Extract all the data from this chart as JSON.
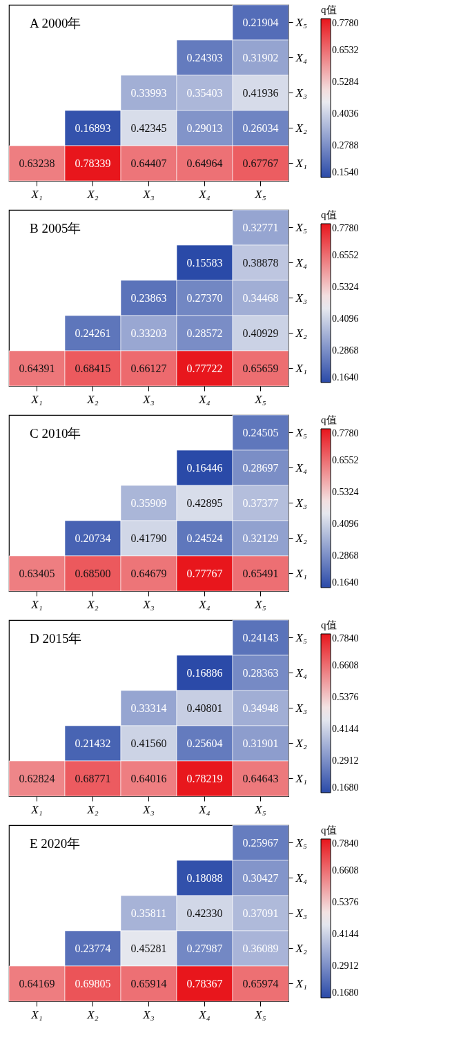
{
  "chart_data": [
    {
      "type": "heatmap",
      "title": "A 2000年",
      "categories": [
        "X₁",
        "X₂",
        "X₃",
        "X₄",
        "X₅"
      ],
      "y_categories": [
        "X₅",
        "X₄",
        "X₃",
        "X₂",
        "X₁"
      ],
      "cells": [
        [
          null,
          null,
          null,
          null,
          0.21904
        ],
        [
          null,
          null,
          null,
          0.24303,
          0.31902
        ],
        [
          null,
          null,
          0.33993,
          0.35403,
          0.41936
        ],
        [
          null,
          0.16893,
          0.42345,
          0.29013,
          0.26034
        ],
        [
          0.63238,
          0.78339,
          0.64407,
          0.64964,
          0.67767
        ]
      ],
      "cell_labels": [
        [
          null,
          null,
          null,
          null,
          "0.21904"
        ],
        [
          null,
          null,
          null,
          "0.24303",
          "0.31902"
        ],
        [
          null,
          null,
          "0.33993",
          "0.35403",
          "0.41936"
        ],
        [
          null,
          "0.16893",
          "0.42345",
          "0.29013",
          "0.26034"
        ],
        [
          "0.63238",
          "0.78339",
          "0.64407",
          "0.64964",
          "0.67767"
        ]
      ],
      "clabel": "q值",
      "clim": [
        0.154,
        0.778
      ],
      "cticks": [
        {
          "value": 0.154,
          "label": "0.1540"
        },
        0.2788,
        0.4036,
        0.5284,
        0.6532,
        {
          "value": 0.778,
          "label": "0.7780"
        }
      ],
      "data_labels": true
    },
    {
      "type": "heatmap",
      "title": "B 2005年",
      "categories": [
        "X₁",
        "X₂",
        "X₃",
        "X₄",
        "X₅"
      ],
      "y_categories": [
        "X₅",
        "X₄",
        "X₃",
        "X₂",
        "X₁"
      ],
      "cells": [
        [
          null,
          null,
          null,
          null,
          0.32771
        ],
        [
          null,
          null,
          null,
          0.15583,
          0.38878
        ],
        [
          null,
          null,
          0.23863,
          0.2737,
          0.34468
        ],
        [
          null,
          0.24261,
          0.33203,
          0.28572,
          0.40929
        ],
        [
          0.64391,
          0.68415,
          0.66127,
          0.77722,
          0.65659
        ]
      ],
      "cell_labels": [
        [
          null,
          null,
          null,
          null,
          "0.32771"
        ],
        [
          null,
          null,
          null,
          "0.15583",
          "0.38878"
        ],
        [
          null,
          null,
          "0.23863",
          "0.27370",
          "0.34468"
        ],
        [
          null,
          "0.24261",
          "0.33203",
          "0.28572",
          "0.40929"
        ],
        [
          "0.64391",
          "0.68415",
          "0.66127",
          "0.77722",
          "0.65659"
        ]
      ],
      "clabel": "q值",
      "clim": [
        0.164,
        0.778
      ],
      "cticks": [
        {
          "value": 0.164,
          "label": "0.1640"
        },
        0.2868,
        0.4096,
        0.5324,
        0.6552,
        {
          "value": 0.778,
          "label": "0.7780"
        }
      ],
      "data_labels": true
    },
    {
      "type": "heatmap",
      "title": "C 2010年",
      "categories": [
        "X₁",
        "X₂",
        "X₃",
        "X₄",
        "X₅"
      ],
      "y_categories": [
        "X₅",
        "X₄",
        "X₃",
        "X₂",
        "X₁"
      ],
      "cells": [
        [
          null,
          null,
          null,
          null,
          0.24505
        ],
        [
          null,
          null,
          null,
          0.16446,
          0.28697
        ],
        [
          null,
          null,
          0.35909,
          0.42895,
          0.37377
        ],
        [
          null,
          0.20734,
          0.4179,
          0.24524,
          0.32129
        ],
        [
          0.63405,
          0.685,
          0.64679,
          0.77767,
          0.65491
        ]
      ],
      "cell_labels": [
        [
          null,
          null,
          null,
          null,
          "0.24505"
        ],
        [
          null,
          null,
          null,
          "0.16446",
          "0.28697"
        ],
        [
          null,
          null,
          "0.35909",
          "0.42895",
          "0.37377"
        ],
        [
          null,
          "0.20734",
          "0.41790",
          "0.24524",
          "0.32129"
        ],
        [
          "0.63405",
          "0.68500",
          "0.64679",
          "0.77767",
          "0.65491"
        ]
      ],
      "clabel": "q值",
      "clim": [
        0.164,
        0.778
      ],
      "cticks": [
        {
          "value": 0.164,
          "label": "0.1640"
        },
        0.2868,
        0.4096,
        0.5324,
        0.6552,
        {
          "value": 0.778,
          "label": "0.7780"
        }
      ],
      "data_labels": true
    },
    {
      "type": "heatmap",
      "title": "D 2015年",
      "categories": [
        "X₁",
        "X₂",
        "X₃",
        "X₄",
        "X₅"
      ],
      "y_categories": [
        "X₅",
        "X₄",
        "X₃",
        "X₂",
        "X₁"
      ],
      "cells": [
        [
          null,
          null,
          null,
          null,
          0.24143
        ],
        [
          null,
          null,
          null,
          0.16886,
          0.28363
        ],
        [
          null,
          null,
          0.33314,
          0.40801,
          0.34948
        ],
        [
          null,
          0.21432,
          0.4156,
          0.25604,
          0.31901
        ],
        [
          0.62824,
          0.68771,
          0.64016,
          0.78219,
          0.64643
        ]
      ],
      "cell_labels": [
        [
          null,
          null,
          null,
          null,
          "0.24143"
        ],
        [
          null,
          null,
          null,
          "0.16886",
          "0.28363"
        ],
        [
          null,
          null,
          "0.33314",
          "0.40801",
          "0.34948"
        ],
        [
          null,
          "0.21432",
          "0.41560",
          "0.25604",
          "0.31901"
        ],
        [
          "0.62824",
          "0.68771",
          "0.64016",
          "0.78219",
          "0.64643"
        ]
      ],
      "clabel": "q值",
      "clim": [
        0.168,
        0.784
      ],
      "cticks": [
        {
          "value": 0.168,
          "label": "0.1680"
        },
        0.2912,
        0.4144,
        0.5376,
        0.6608,
        {
          "value": 0.784,
          "label": "0.7840"
        }
      ],
      "data_labels": true
    },
    {
      "type": "heatmap",
      "title": "E 2020年",
      "categories": [
        "X₁",
        "X₂",
        "X₃",
        "X₄",
        "X₅"
      ],
      "y_categories": [
        "X₅",
        "X₄",
        "X₃",
        "X₂",
        "X₁"
      ],
      "cells": [
        [
          null,
          null,
          null,
          null,
          0.25967
        ],
        [
          null,
          null,
          null,
          0.18088,
          0.30427
        ],
        [
          null,
          null,
          0.35811,
          0.4233,
          0.37091
        ],
        [
          null,
          0.23774,
          0.45281,
          0.27987,
          0.36089
        ],
        [
          0.64169,
          0.69805,
          0.65914,
          0.78367,
          0.65974
        ]
      ],
      "cell_labels": [
        [
          null,
          null,
          null,
          null,
          "0.25967"
        ],
        [
          null,
          null,
          null,
          "0.18088",
          "0.30427"
        ],
        [
          null,
          null,
          "0.35811",
          "0.42330",
          "0.37091"
        ],
        [
          null,
          "0.23774",
          "0.45281",
          "0.27987",
          "0.36089"
        ],
        [
          "0.64169",
          "0.69805",
          "0.65914",
          "0.78367",
          "0.65974"
        ]
      ],
      "clabel": "q值",
      "clim": [
        0.168,
        0.784
      ],
      "cticks": [
        {
          "value": 0.168,
          "label": "0.1680"
        },
        0.2912,
        0.4144,
        0.5376,
        0.6608,
        {
          "value": 0.784,
          "label": "0.7840"
        }
      ],
      "data_labels": true
    }
  ]
}
